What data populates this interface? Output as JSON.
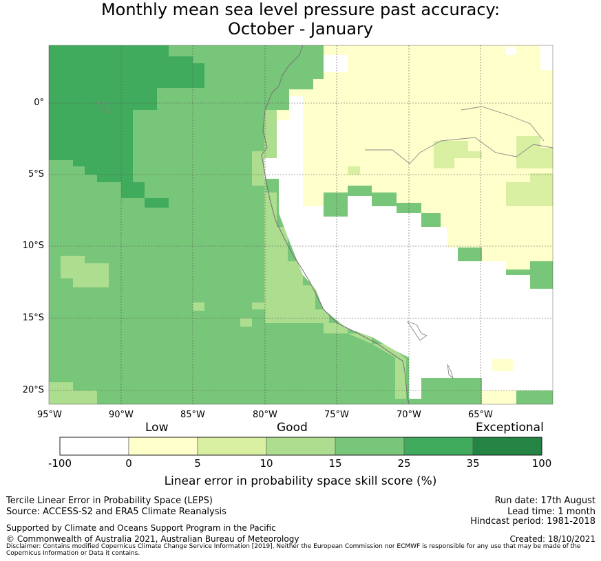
{
  "title_line1": "Monthly mean sea level pressure past accuracy:",
  "title_line2": "October - January",
  "map": {
    "lon_range": [
      -95,
      -61.5
    ],
    "lat_range": [
      -21,
      4
    ],
    "lat_ticks": [
      "0°",
      "5°S",
      "10°S",
      "15°S",
      "20°S"
    ],
    "lon_ticks": [
      "95°W",
      "90°W",
      "85°W",
      "80°W",
      "75°W",
      "70°W",
      "65°W"
    ],
    "regions": [
      {
        "name": "offshore-pacific",
        "bin": "15-25"
      },
      {
        "name": "north-west-pacific",
        "bin": "25-35"
      },
      {
        "name": "peru-coastal-strip",
        "bin": "10-15"
      },
      {
        "name": "amazon-north",
        "bin": "0-5"
      },
      {
        "name": "andes-peru-bolivia",
        "bin": "-100-0"
      }
    ]
  },
  "colorbar": {
    "category_labels": [
      "Low",
      "Good",
      "Exceptional"
    ],
    "ticks": [
      "-100",
      "0",
      "5",
      "10",
      "15",
      "25",
      "35",
      "100"
    ],
    "colors": [
      "#ffffff",
      "#ffffcc",
      "#d9f0a3",
      "#addd8e",
      "#78c679",
      "#41ab5d",
      "#238443"
    ],
    "label": "Linear error in probability space skill score (%)"
  },
  "footer": {
    "line1": "Tercile Linear Error in Probability Space (LEPS)",
    "line2": "Source: ACCESS-S2 and ERA5 Climate Reanalysis",
    "support": "Supported by Climate and Oceans Support Program in the Pacific",
    "copyright": "© Commonwealth of Australia 2021, Australian Bureau of Meteorology",
    "run_date": "Run date: 17th August",
    "lead_time": "Lead time: 1 month",
    "hindcast": "Hindcast period: 1981-2018",
    "created": "Created: 18/10/2021",
    "disclaimer": "Disclaimer: Contains modified Copernicus Climate Change Service Information [2019]. Neither the European Commission nor ECMWF is responsible for any use that may be made of the Copernicus Information or Data it contains."
  }
}
